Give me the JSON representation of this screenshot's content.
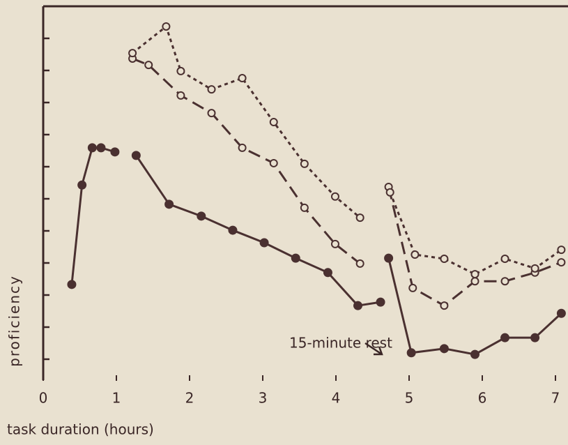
{
  "chart_data": {
    "type": "line",
    "xlabel": "task duration (hours)",
    "ylabel": "proficiency",
    "annotation": "15-minute rest",
    "xlim": [
      0,
      7
    ],
    "xticks": [
      0,
      1,
      2,
      3,
      4,
      5,
      6,
      7
    ],
    "ylim": [
      0,
      12
    ],
    "yticks": [
      1,
      2,
      3,
      4,
      5,
      6,
      7,
      8,
      9,
      10,
      11
    ],
    "series": [
      {
        "color": "#4a3030",
        "dash": "solid",
        "marker": "filled",
        "x": [
          0.39,
          0.53,
          0.67,
          0.79,
          0.98,
          null,
          1.27,
          1.72,
          2.16,
          2.59,
          3.02,
          3.45,
          3.89,
          4.3,
          4.61,
          null,
          4.72,
          5.03,
          5.48,
          5.9,
          6.31,
          6.72,
          7.08
        ],
        "values": [
          3.33,
          6.43,
          7.59,
          7.59,
          7.46,
          null,
          7.35,
          5.83,
          5.46,
          5.02,
          4.63,
          4.15,
          3.7,
          2.67,
          2.78,
          null,
          4.15,
          1.2,
          1.33,
          1.15,
          1.67,
          1.67,
          2.43
        ]
      },
      {
        "color": "#4a3030",
        "dash": "dashed",
        "marker": "open",
        "x": [
          1.22,
          1.44,
          1.88,
          2.3,
          2.72,
          3.15,
          3.57,
          3.99,
          4.33,
          null,
          4.72,
          5.05,
          5.48,
          5.9,
          6.31,
          6.72,
          7.08
        ],
        "values": [
          10.37,
          10.17,
          9.22,
          8.67,
          7.59,
          7.11,
          5.72,
          4.59,
          3.98,
          null,
          6.37,
          3.22,
          2.67,
          3.43,
          3.43,
          3.7,
          4.02
        ]
      },
      {
        "color": "#4a3030",
        "dash": "dotted",
        "marker": "open",
        "x": [
          1.22,
          1.68,
          1.88,
          2.3,
          2.72,
          3.15,
          3.57,
          3.99,
          4.33,
          null,
          4.74,
          5.08,
          5.48,
          5.9,
          6.31,
          6.72,
          7.08
        ],
        "values": [
          10.54,
          11.37,
          9.98,
          9.41,
          9.76,
          8.39,
          7.09,
          6.07,
          5.41,
          null,
          6.2,
          4.26,
          4.13,
          3.65,
          4.13,
          3.83,
          4.41
        ]
      }
    ]
  }
}
